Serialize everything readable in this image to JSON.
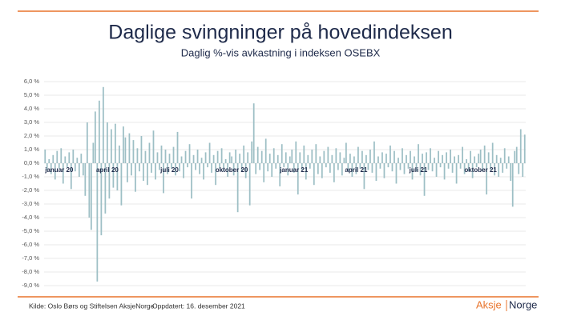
{
  "chart_data": {
    "type": "bar",
    "title": "Daglige svingninger på hovedindeksen",
    "subtitle": "Daglig %-vis avkastning i indeksen OSEBX",
    "source": "Kilde: Oslo Børs og Stiftelsen AksjeNorge",
    "updated": "Oppdatert: 16. desember 2021",
    "logo": [
      "Aksje",
      "Norge"
    ],
    "color": "#9dbfc5",
    "grid": true,
    "ylim": [
      -9,
      6
    ],
    "yticks": [
      {
        "value": 6,
        "label": "6,0 %"
      },
      {
        "value": 5,
        "label": "5,0 %"
      },
      {
        "value": 4,
        "label": "4,0 %"
      },
      {
        "value": 3,
        "label": "3,0 %"
      },
      {
        "value": 2,
        "label": "2,0 %"
      },
      {
        "value": 1,
        "label": "1,0 %"
      },
      {
        "value": 0,
        "label": "0,0 %"
      },
      {
        "value": -1,
        "label": "-1,0 %"
      },
      {
        "value": -2,
        "label": "-2,0 %"
      },
      {
        "value": -3,
        "label": "-3,0 %"
      },
      {
        "value": -4,
        "label": "-4,0 %"
      },
      {
        "value": -5,
        "label": "-5,0 %"
      },
      {
        "value": -6,
        "label": "-6,0 %"
      },
      {
        "value": -7,
        "label": "-7,0 %"
      },
      {
        "value": -8,
        "label": "-8,0 %"
      },
      {
        "value": -9,
        "label": "-9,0 %"
      }
    ],
    "categories": [
      "januar 20",
      null,
      null,
      null,
      null,
      null,
      null,
      null,
      null,
      null,
      null,
      null,
      null,
      null,
      null,
      null,
      null,
      null,
      null,
      null,
      null,
      null,
      null,
      null,
      null,
      null,
      null,
      null,
      null,
      null,
      null,
      "april 20",
      null,
      null,
      null,
      null,
      null,
      null,
      null,
      null,
      null,
      null,
      null,
      null,
      null,
      null,
      null,
      null,
      null,
      null,
      null,
      null,
      null,
      null,
      null,
      null,
      null,
      null,
      null,
      null,
      null,
      null,
      "juli 20",
      null,
      null,
      null,
      null,
      null,
      null,
      null,
      null,
      null,
      null,
      null,
      null,
      null,
      null,
      null,
      null,
      null,
      null,
      null,
      null,
      null,
      null,
      null,
      null,
      null,
      null,
      null,
      null,
      null,
      null,
      "oktober 20",
      null,
      null,
      null,
      null,
      null,
      null,
      null,
      null,
      null,
      null,
      null,
      null,
      null,
      null,
      null,
      null,
      null,
      null,
      null,
      null,
      null,
      null,
      null,
      null,
      null,
      null,
      null,
      null,
      null,
      null,
      "januar 21",
      null,
      null,
      null,
      null,
      null,
      null,
      null,
      null,
      null,
      null,
      null,
      null,
      null,
      null,
      null,
      null,
      null,
      null,
      null,
      null,
      null,
      null,
      null,
      null,
      null,
      null,
      null,
      null,
      null,
      null,
      "april 21",
      null,
      null,
      null,
      null,
      null,
      null,
      null,
      null,
      null,
      null,
      null,
      null,
      null,
      null,
      null,
      null,
      null,
      null,
      null,
      null,
      null,
      null,
      null,
      null,
      null,
      null,
      null,
      null,
      null,
      null,
      "juli 21",
      null,
      null,
      null,
      null,
      null,
      null,
      null,
      null,
      null,
      null,
      null,
      null,
      null,
      null,
      null,
      null,
      null,
      null,
      null,
      null,
      null,
      null,
      null,
      null,
      null,
      null,
      null,
      null,
      null,
      null,
      "oktober 21",
      null,
      null,
      null,
      null,
      null,
      null,
      null,
      null,
      null,
      null,
      null,
      null,
      null,
      null,
      null,
      null,
      null,
      null,
      null,
      null,
      null,
      null
    ],
    "values": [
      1.0,
      -0.5,
      0.3,
      -0.8,
      0.6,
      -1.2,
      0.9,
      -0.4,
      1.1,
      -1.5,
      0.5,
      -0.3,
      0.8,
      -1.9,
      1.0,
      -0.6,
      0.4,
      -1.0,
      0.7,
      -0.9,
      -2.4,
      3.0,
      -4.0,
      -4.9,
      1.5,
      3.8,
      -8.7,
      4.6,
      -5.3,
      5.6,
      -3.7,
      3.0,
      -2.6,
      2.5,
      -1.8,
      2.9,
      -2.0,
      1.3,
      -3.1,
      2.7,
      1.9,
      -1.4,
      2.2,
      -0.9,
      1.7,
      -2.1,
      1.1,
      -0.6,
      2.0,
      -1.3,
      0.9,
      -1.6,
      1.5,
      -0.7,
      2.4,
      -1.2,
      0.8,
      -0.5,
      1.3,
      -2.2,
      1.0,
      -0.8,
      0.7,
      -0.4,
      1.2,
      -0.9,
      2.3,
      -0.6,
      0.5,
      -1.1,
      0.9,
      -0.3,
      1.4,
      -2.6,
      0.6,
      -0.5,
      1.0,
      -0.8,
      0.4,
      -1.2,
      0.8,
      -0.3,
      1.5,
      -0.7,
      0.6,
      -1.6,
      0.9,
      -0.4,
      1.1,
      -0.6,
      0.3,
      -1.0,
      0.8,
      0.5,
      -0.9,
      1.0,
      -3.6,
      0.7,
      -0.6,
      1.3,
      -1.1,
      0.8,
      -3.1,
      1.6,
      4.4,
      -0.8,
      1.2,
      -0.5,
      0.9,
      -1.4,
      1.8,
      -0.6,
      0.7,
      -1.0,
      1.1,
      -0.4,
      0.6,
      -1.7,
      1.4,
      -0.3,
      0.8,
      -0.9,
      0.5,
      1.0,
      -0.7,
      1.6,
      -2.3,
      0.8,
      -0.5,
      1.3,
      -1.2,
      0.6,
      -0.4,
      1.0,
      -1.6,
      1.4,
      -0.8,
      0.5,
      -1.1,
      0.9,
      -0.3,
      1.2,
      -0.7,
      0.6,
      -1.4,
      1.1,
      -0.5,
      0.8,
      -0.9,
      0.4,
      1.5,
      -0.6,
      0.7,
      -1.0,
      0.5,
      -0.8,
      1.2,
      -0.4,
      0.9,
      -1.9,
      0.6,
      -0.5,
      1.0,
      -0.7,
      1.6,
      -1.3,
      0.5,
      -0.4,
      0.8,
      -1.1,
      0.7,
      -0.3,
      1.3,
      -0.6,
      0.9,
      -1.5,
      0.4,
      -0.5,
      1.1,
      -0.8,
      0.6,
      -0.4,
      0.9,
      -1.2,
      0.5,
      -0.6,
      1.4,
      -0.9,
      0.7,
      -2.4,
      0.8,
      -0.5,
      1.1,
      -0.6,
      0.4,
      -1.0,
      0.9,
      -0.3,
      0.6,
      -1.2,
      0.8,
      -0.4,
      1.0,
      -0.7,
      0.5,
      -1.5,
      0.6,
      -0.4,
      1.2,
      -0.8,
      0.3,
      -0.6,
      0.9,
      -1.1,
      0.5,
      -0.3,
      0.7,
      1.0,
      -0.6,
      1.3,
      -2.3,
      0.8,
      -0.5,
      1.5,
      -0.9,
      0.6,
      -1.0,
      0.4,
      -0.7,
      1.1,
      -0.4,
      0.5,
      -1.3,
      -3.2,
      0.9,
      1.2,
      -0.8,
      2.5,
      -1.0,
      2.1
    ]
  }
}
